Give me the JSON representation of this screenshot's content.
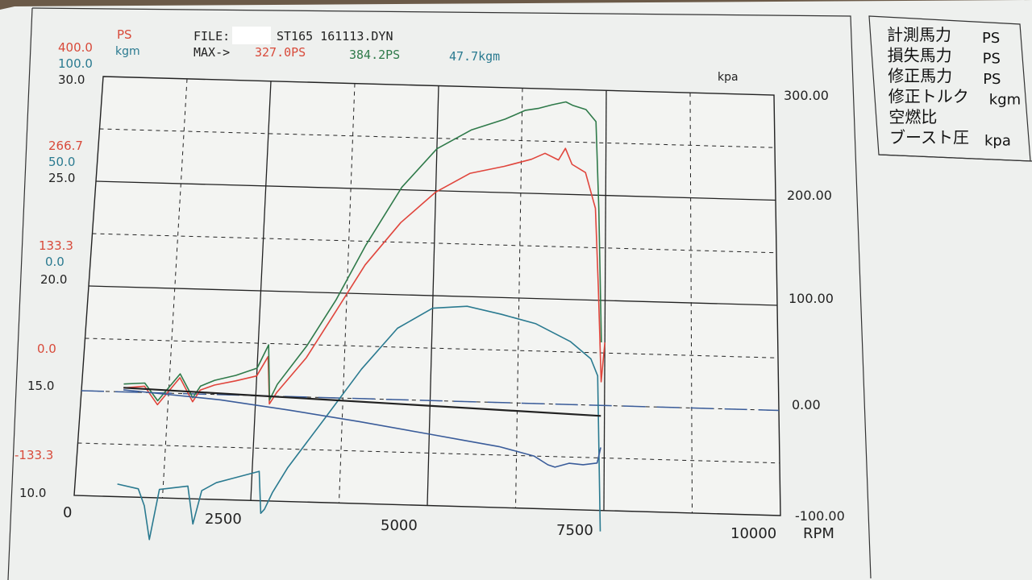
{
  "header": {
    "ps_label": "PS",
    "kgm_label": "kgm",
    "file_label": "FILE:",
    "file_name": "ST165  161113.DYN",
    "max_label": "MAX->",
    "max_ps": "327.0PS",
    "max_ps2": "384.2PS",
    "max_kgm": "47.7kgm",
    "kpa_label": "kpa"
  },
  "left_axis": {
    "top": [
      "400.0",
      "100.0",
      "30.0"
    ],
    "upper": [
      "266.7",
      "50.0",
      "25.0"
    ],
    "mid": [
      "133.3",
      "0.0",
      "20.0"
    ],
    "zero": "0.0",
    "k15": "15.0",
    "neg": "-133.3",
    "k10": "10.0"
  },
  "right_axis": [
    "300.00",
    "200.00",
    "100.00",
    "0.00",
    "-100.00"
  ],
  "x_ticks": [
    "0",
    "2500",
    "5000",
    "7500",
    "10000"
  ],
  "x_unit": "RPM",
  "legend": [
    {
      "name": "計測馬力",
      "unit": "PS"
    },
    {
      "name": "損失馬力",
      "unit": "PS"
    },
    {
      "name": "修正馬力",
      "unit": "PS"
    },
    {
      "name": "修正トルク",
      "unit": "kgm"
    },
    {
      "name": "空燃比",
      "unit": ""
    },
    {
      "name": "ブースト圧",
      "unit": "kpa"
    }
  ],
  "colors": {
    "ps": "#e0453c",
    "ps2": "#2f7a4a",
    "kgm": "#2a7a90",
    "boost": "#3a5c9a",
    "afr": "#222222"
  },
  "chart_data": {
    "type": "line",
    "xlabel": "RPM",
    "xlim": [
      0,
      10000
    ],
    "series": [
      {
        "name": "修正馬力",
        "unit": "PS",
        "axis_range": [
          -133.3,
          400
        ],
        "x": [
          600,
          900,
          1100,
          1400,
          1600,
          1700,
          1900,
          2200,
          2500,
          2650,
          2700,
          2800,
          3200,
          3600,
          4000,
          4500,
          5000,
          5500,
          6000,
          6400,
          6600,
          6800,
          6900,
          7000,
          7200,
          7350,
          7400,
          7450,
          7500
        ],
        "y": [
          5,
          8,
          -15,
          20,
          -10,
          5,
          12,
          18,
          25,
          50,
          -10,
          5,
          50,
          110,
          170,
          225,
          265,
          290,
          300,
          310,
          318,
          310,
          325,
          305,
          295,
          250,
          150,
          30,
          80
        ]
      },
      {
        "name": "計測馬力",
        "unit": "PS",
        "axis_range": [
          -133.3,
          400
        ],
        "x": [
          600,
          900,
          1100,
          1400,
          1600,
          1700,
          1900,
          2200,
          2500,
          2650,
          2700,
          2800,
          3200,
          3600,
          4000,
          4500,
          5000,
          5500,
          6000,
          6300,
          6500,
          6700,
          6900,
          7000,
          7200,
          7350,
          7400,
          7450
        ],
        "y": [
          10,
          12,
          -10,
          25,
          -5,
          10,
          18,
          25,
          35,
          65,
          -5,
          15,
          65,
          125,
          195,
          270,
          320,
          345,
          360,
          372,
          375,
          380,
          384,
          380,
          375,
          360,
          250,
          80
        ]
      },
      {
        "name": "修正トルク",
        "unit": "kgm",
        "axis_range": [
          0,
          100
        ],
        "x": [
          600,
          900,
          1000,
          1100,
          1200,
          1600,
          1700,
          1800,
          2000,
          2200,
          2600,
          2650,
          2700,
          2800,
          3000,
          3500,
          4000,
          4500,
          5000,
          5500,
          6000,
          6500,
          7000,
          7300,
          7400,
          7450
        ],
        "y": [
          3,
          2,
          -2,
          -10,
          2,
          3,
          -6,
          2,
          4,
          5,
          7,
          -3,
          -2,
          2,
          8,
          20,
          32,
          42,
          47,
          47.7,
          46,
          44,
          40,
          36,
          32,
          -5
        ]
      },
      {
        "name": "ブースト圧",
        "unit": "kpa",
        "axis_range": [
          -100,
          300
        ],
        "x": [
          600,
          1000,
          2000,
          3000,
          4000,
          5000,
          5500,
          6000,
          6500,
          6700,
          6800,
          7000,
          7200,
          7400,
          7450
        ],
        "y": [
          2,
          0,
          -5,
          -13,
          -22,
          -32,
          -37,
          -42,
          -50,
          -58,
          -60,
          -56,
          -57,
          -55,
          -40
        ]
      },
      {
        "name": "空燃比",
        "unit": "",
        "axis_range": [
          10,
          30
        ],
        "x": [
          600,
          7450
        ],
        "y": [
          15.2,
          14.5
        ]
      }
    ]
  }
}
